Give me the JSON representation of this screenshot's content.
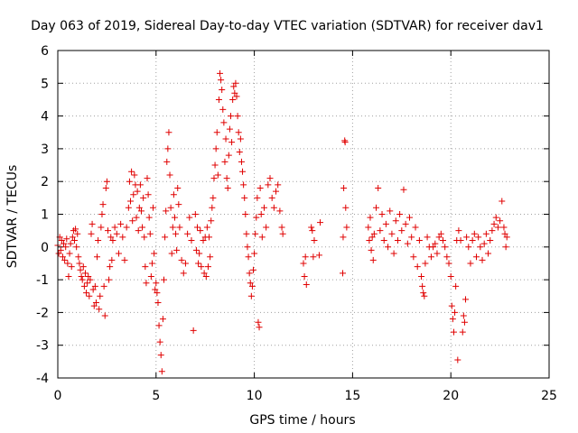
{
  "chart_data": {
    "type": "scatter",
    "title": "Day 063 of 2019, Sidereal Day-to-day VTEC variation (SDTVAR) for receiver dav1",
    "xlabel": "GPS time / hours",
    "ylabel": "SDTVAR / TECUs",
    "xlim": [
      0,
      25
    ],
    "ylim": [
      -4,
      6
    ],
    "xticks": [
      0,
      5,
      10,
      15,
      20,
      25
    ],
    "yticks": [
      -4,
      -3,
      -2,
      -1,
      0,
      1,
      2,
      3,
      4,
      5,
      6
    ],
    "grid": true,
    "marker": "+",
    "series_color": "#e00000",
    "series": [
      {
        "name": "dav1",
        "points": [
          [
            0.0,
            0.05
          ],
          [
            0.05,
            -0.2
          ],
          [
            0.1,
            0.3
          ],
          [
            0.15,
            -0.1
          ],
          [
            0.2,
            0.2
          ],
          [
            0.25,
            -0.3
          ],
          [
            0.3,
            0.1
          ],
          [
            0.35,
            -0.4
          ],
          [
            0.4,
            0.0
          ],
          [
            0.45,
            0.25
          ],
          [
            0.5,
            -0.5
          ],
          [
            0.55,
            -0.9
          ],
          [
            0.6,
            -0.2
          ],
          [
            0.65,
            0.1
          ],
          [
            0.7,
            -0.6
          ],
          [
            0.75,
            0.3
          ],
          [
            0.8,
            0.5
          ],
          [
            0.85,
            0.2
          ],
          [
            0.9,
            0.55
          ],
          [
            0.95,
            0.0
          ],
          [
            1.0,
            0.4
          ],
          [
            1.05,
            -0.3
          ],
          [
            1.1,
            -0.5
          ],
          [
            1.15,
            -0.7
          ],
          [
            1.2,
            -0.9
          ],
          [
            1.25,
            -1.0
          ],
          [
            1.3,
            -0.6
          ],
          [
            1.35,
            -1.2
          ],
          [
            1.4,
            -0.8
          ],
          [
            1.45,
            -1.4
          ],
          [
            1.5,
            -1.1
          ],
          [
            1.55,
            -0.9
          ],
          [
            1.6,
            -1.5
          ],
          [
            1.65,
            -1.0
          ],
          [
            1.7,
            0.4
          ],
          [
            1.75,
            0.7
          ],
          [
            1.8,
            -1.3
          ],
          [
            1.85,
            -1.8
          ],
          [
            1.9,
            -1.2
          ],
          [
            1.95,
            -1.7
          ],
          [
            2.0,
            -0.3
          ],
          [
            2.05,
            0.2
          ],
          [
            2.1,
            -1.9
          ],
          [
            2.15,
            -1.5
          ],
          [
            2.2,
            0.6
          ],
          [
            2.25,
            1.0
          ],
          [
            2.3,
            1.3
          ],
          [
            2.35,
            -1.2
          ],
          [
            2.4,
            -2.1
          ],
          [
            2.45,
            1.8
          ],
          [
            2.5,
            2.0
          ],
          [
            2.55,
            0.5
          ],
          [
            2.6,
            -1.0
          ],
          [
            2.65,
            -0.6
          ],
          [
            2.7,
            0.3
          ],
          [
            2.75,
            -0.4
          ],
          [
            2.8,
            0.2
          ],
          [
            2.9,
            0.6
          ],
          [
            3.0,
            0.4
          ],
          [
            3.1,
            -0.2
          ],
          [
            3.2,
            0.7
          ],
          [
            3.3,
            0.3
          ],
          [
            3.4,
            -0.4
          ],
          [
            3.5,
            0.6
          ],
          [
            3.6,
            1.2
          ],
          [
            3.65,
            2.0
          ],
          [
            3.7,
            1.4
          ],
          [
            3.75,
            2.3
          ],
          [
            3.8,
            0.8
          ],
          [
            3.85,
            1.6
          ],
          [
            3.9,
            2.2
          ],
          [
            3.95,
            1.9
          ],
          [
            4.0,
            0.9
          ],
          [
            4.05,
            1.7
          ],
          [
            4.1,
            0.5
          ],
          [
            4.15,
            1.2
          ],
          [
            4.2,
            1.9
          ],
          [
            4.25,
            1.1
          ],
          [
            4.3,
            0.6
          ],
          [
            4.35,
            1.5
          ],
          [
            4.4,
            0.3
          ],
          [
            4.45,
            -0.6
          ],
          [
            4.5,
            -1.1
          ],
          [
            4.55,
            2.1
          ],
          [
            4.6,
            1.6
          ],
          [
            4.65,
            0.9
          ],
          [
            4.7,
            0.4
          ],
          [
            4.75,
            -0.9
          ],
          [
            4.8,
            -0.5
          ],
          [
            4.85,
            1.2
          ],
          [
            4.9,
            -0.2
          ],
          [
            4.95,
            -1.3
          ],
          [
            5.0,
            -1.1
          ],
          [
            5.05,
            -1.4
          ],
          [
            5.1,
            -1.7
          ],
          [
            5.15,
            -2.4
          ],
          [
            5.2,
            -2.9
          ],
          [
            5.25,
            -3.3
          ],
          [
            5.3,
            -3.8
          ],
          [
            5.35,
            -2.2
          ],
          [
            5.4,
            -1.0
          ],
          [
            5.45,
            0.3
          ],
          [
            5.5,
            1.1
          ],
          [
            5.55,
            2.6
          ],
          [
            5.6,
            3.0
          ],
          [
            5.65,
            3.5
          ],
          [
            5.7,
            2.2
          ],
          [
            5.75,
            1.2
          ],
          [
            5.8,
            -0.2
          ],
          [
            5.85,
            0.6
          ],
          [
            5.9,
            1.6
          ],
          [
            5.95,
            0.9
          ],
          [
            6.0,
            0.4
          ],
          [
            6.05,
            -0.1
          ],
          [
            6.1,
            1.8
          ],
          [
            6.15,
            1.3
          ],
          [
            6.2,
            0.6
          ],
          [
            6.3,
            -0.4
          ],
          [
            6.4,
            -0.8
          ],
          [
            6.5,
            -0.5
          ],
          [
            6.6,
            0.4
          ],
          [
            6.7,
            0.9
          ],
          [
            6.8,
            0.2
          ],
          [
            6.9,
            -2.55
          ],
          [
            7.0,
            1.0
          ],
          [
            7.05,
            -0.1
          ],
          [
            7.1,
            0.6
          ],
          [
            7.15,
            -0.5
          ],
          [
            7.2,
            -0.2
          ],
          [
            7.25,
            0.5
          ],
          [
            7.3,
            -0.6
          ],
          [
            7.4,
            0.2
          ],
          [
            7.45,
            -0.8
          ],
          [
            7.5,
            0.3
          ],
          [
            7.55,
            -0.9
          ],
          [
            7.6,
            0.6
          ],
          [
            7.65,
            -0.6
          ],
          [
            7.7,
            0.3
          ],
          [
            7.75,
            -0.3
          ],
          [
            7.8,
            0.8
          ],
          [
            7.85,
            1.2
          ],
          [
            7.9,
            1.5
          ],
          [
            7.95,
            2.1
          ],
          [
            8.0,
            2.5
          ],
          [
            8.05,
            3.0
          ],
          [
            8.1,
            3.5
          ],
          [
            8.15,
            2.2
          ],
          [
            8.2,
            4.5
          ],
          [
            8.25,
            5.3
          ],
          [
            8.3,
            5.1
          ],
          [
            8.35,
            4.8
          ],
          [
            8.4,
            4.2
          ],
          [
            8.45,
            3.8
          ],
          [
            8.5,
            2.6
          ],
          [
            8.55,
            3.3
          ],
          [
            8.6,
            2.1
          ],
          [
            8.65,
            1.8
          ],
          [
            8.7,
            2.8
          ],
          [
            8.75,
            3.6
          ],
          [
            8.8,
            4.0
          ],
          [
            8.85,
            3.2
          ],
          [
            8.9,
            4.5
          ],
          [
            8.95,
            4.9
          ],
          [
            9.0,
            4.7
          ],
          [
            9.05,
            5.0
          ],
          [
            9.1,
            4.6
          ],
          [
            9.15,
            4.0
          ],
          [
            9.2,
            3.5
          ],
          [
            9.25,
            2.9
          ],
          [
            9.3,
            3.3
          ],
          [
            9.35,
            2.6
          ],
          [
            9.4,
            2.3
          ],
          [
            9.45,
            1.9
          ],
          [
            9.5,
            1.5
          ],
          [
            9.55,
            1.0
          ],
          [
            9.6,
            0.4
          ],
          [
            9.65,
            0.0
          ],
          [
            9.7,
            -0.3
          ],
          [
            9.75,
            -0.8
          ],
          [
            9.8,
            -1.1
          ],
          [
            9.85,
            -1.5
          ],
          [
            9.9,
            -1.2
          ],
          [
            9.95,
            -0.7
          ],
          [
            10.0,
            -0.2
          ],
          [
            10.05,
            0.4
          ],
          [
            10.1,
            0.9
          ],
          [
            10.15,
            1.5
          ],
          [
            10.2,
            -2.3
          ],
          [
            10.25,
            -2.45
          ],
          [
            10.3,
            1.8
          ],
          [
            10.35,
            1.0
          ],
          [
            10.4,
            0.3
          ],
          [
            10.5,
            1.2
          ],
          [
            10.6,
            0.6
          ],
          [
            10.7,
            1.9
          ],
          [
            10.8,
            2.1
          ],
          [
            10.9,
            1.5
          ],
          [
            11.0,
            1.2
          ],
          [
            11.1,
            1.7
          ],
          [
            11.2,
            1.9
          ],
          [
            11.3,
            1.1
          ],
          [
            11.4,
            0.6
          ],
          [
            11.45,
            0.4
          ],
          [
            12.5,
            -0.5
          ],
          [
            12.55,
            -0.9
          ],
          [
            12.6,
            -0.3
          ],
          [
            12.65,
            -1.15
          ],
          [
            12.9,
            0.6
          ],
          [
            12.95,
            0.5
          ],
          [
            13.0,
            -0.3
          ],
          [
            13.05,
            0.2
          ],
          [
            13.3,
            -0.25
          ],
          [
            13.35,
            0.75
          ],
          [
            14.5,
            -0.8
          ],
          [
            14.52,
            0.3
          ],
          [
            14.55,
            1.8
          ],
          [
            14.6,
            3.25
          ],
          [
            14.62,
            3.2
          ],
          [
            14.65,
            1.2
          ],
          [
            14.7,
            0.6
          ],
          [
            15.8,
            0.6
          ],
          [
            15.85,
            0.2
          ],
          [
            15.9,
            0.9
          ],
          [
            15.95,
            -0.1
          ],
          [
            16.0,
            0.3
          ],
          [
            16.05,
            -0.4
          ],
          [
            16.1,
            0.4
          ],
          [
            16.2,
            1.2
          ],
          [
            16.3,
            1.8
          ],
          [
            16.4,
            0.5
          ],
          [
            16.5,
            1.0
          ],
          [
            16.6,
            0.2
          ],
          [
            16.7,
            0.7
          ],
          [
            16.8,
            0.0
          ],
          [
            16.9,
            1.1
          ],
          [
            17.0,
            0.4
          ],
          [
            17.1,
            -0.2
          ],
          [
            17.2,
            0.8
          ],
          [
            17.3,
            0.2
          ],
          [
            17.4,
            1.0
          ],
          [
            17.5,
            0.5
          ],
          [
            17.6,
            1.75
          ],
          [
            17.7,
            0.7
          ],
          [
            17.8,
            0.1
          ],
          [
            17.9,
            0.9
          ],
          [
            18.0,
            0.3
          ],
          [
            18.1,
            -0.3
          ],
          [
            18.2,
            0.6
          ],
          [
            18.3,
            -0.6
          ],
          [
            18.4,
            0.2
          ],
          [
            18.5,
            -0.9
          ],
          [
            18.55,
            -1.2
          ],
          [
            18.6,
            -1.4
          ],
          [
            18.65,
            -1.5
          ],
          [
            18.7,
            -0.5
          ],
          [
            18.8,
            0.3
          ],
          [
            18.9,
            0.0
          ],
          [
            19.0,
            -0.3
          ],
          [
            19.1,
            0.0
          ],
          [
            19.2,
            0.1
          ],
          [
            19.3,
            -0.2
          ],
          [
            19.4,
            0.3
          ],
          [
            19.5,
            0.4
          ],
          [
            19.6,
            0.2
          ],
          [
            19.7,
            0.0
          ],
          [
            19.8,
            -0.3
          ],
          [
            19.9,
            -0.5
          ],
          [
            20.0,
            -0.9
          ],
          [
            20.05,
            -1.8
          ],
          [
            20.1,
            -2.2
          ],
          [
            20.15,
            -2.6
          ],
          [
            20.2,
            -2.0
          ],
          [
            20.25,
            -1.2
          ],
          [
            20.3,
            0.2
          ],
          [
            20.35,
            -3.45
          ],
          [
            20.4,
            0.5
          ],
          [
            20.5,
            0.2
          ],
          [
            20.6,
            -2.6
          ],
          [
            20.65,
            -2.1
          ],
          [
            20.7,
            -2.3
          ],
          [
            20.75,
            -1.6
          ],
          [
            20.8,
            0.3
          ],
          [
            20.9,
            0.0
          ],
          [
            21.0,
            -0.5
          ],
          [
            21.1,
            0.2
          ],
          [
            21.2,
            0.4
          ],
          [
            21.3,
            -0.3
          ],
          [
            21.4,
            0.3
          ],
          [
            21.5,
            0.0
          ],
          [
            21.6,
            -0.4
          ],
          [
            21.7,
            0.1
          ],
          [
            21.8,
            0.4
          ],
          [
            21.9,
            -0.2
          ],
          [
            22.0,
            0.2
          ],
          [
            22.1,
            0.5
          ],
          [
            22.2,
            0.7
          ],
          [
            22.3,
            0.9
          ],
          [
            22.4,
            0.6
          ],
          [
            22.5,
            0.8
          ],
          [
            22.6,
            1.4
          ],
          [
            22.7,
            0.6
          ],
          [
            22.75,
            0.4
          ],
          [
            22.8,
            0.0
          ],
          [
            22.85,
            0.3
          ]
        ]
      }
    ]
  }
}
